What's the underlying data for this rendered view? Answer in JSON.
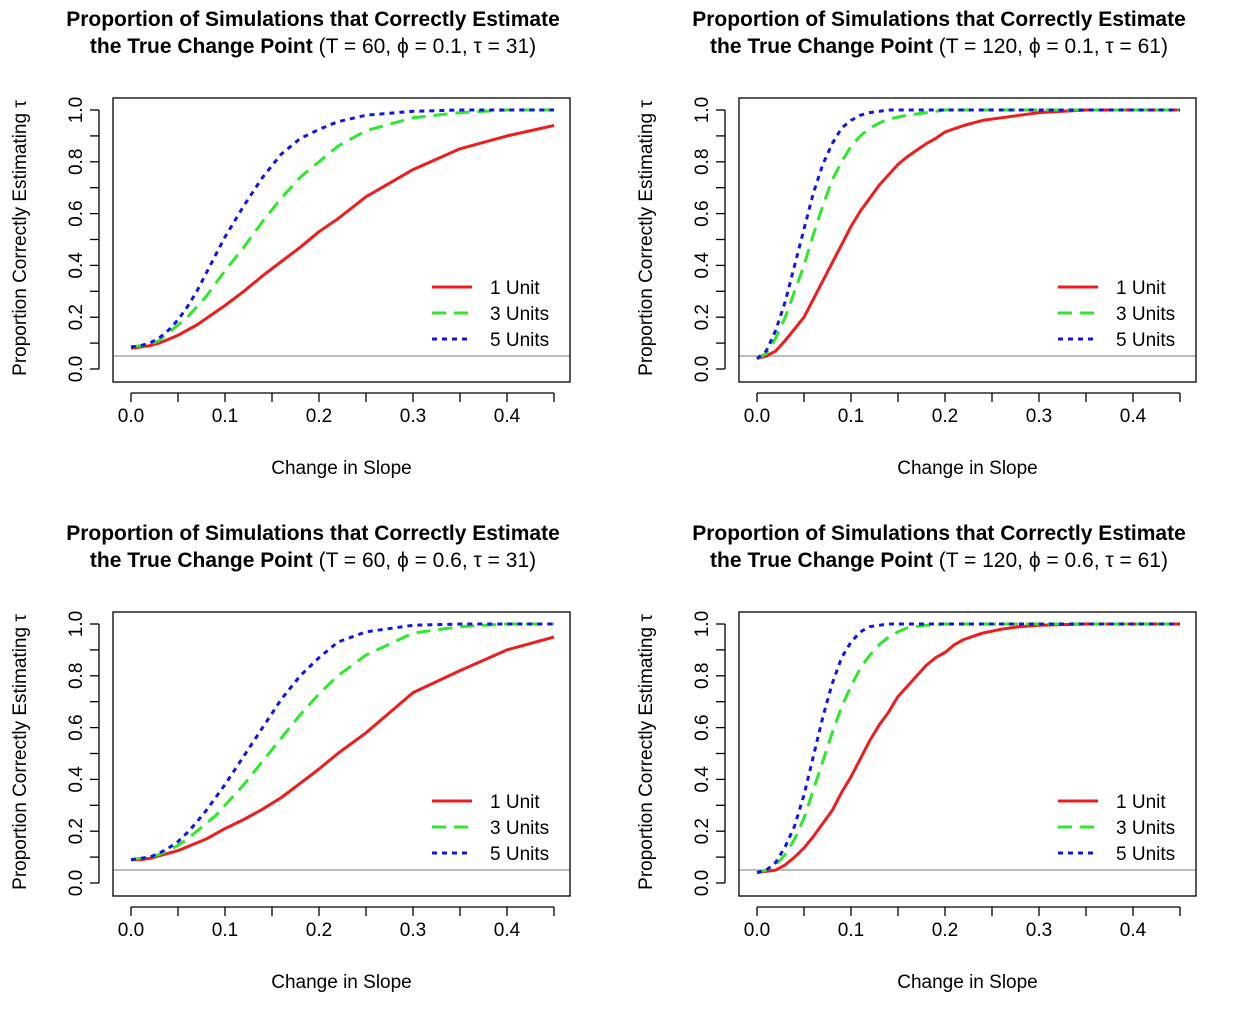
{
  "figure": {
    "title_line1": "Proportion of Simulations that Correctly Estimate",
    "title_line2_bold": "the True Change Point",
    "xlabel": "Change in Slope",
    "ylabel": "Proportion Correctly Estimating τ",
    "legend": [
      "1 Unit",
      "3 Units",
      "5 Units"
    ]
  },
  "colors": {
    "series1": "#ee1c1c",
    "series2": "#2ee82e",
    "series3": "#1414e6",
    "reference_line": "#a6a6a6"
  },
  "panels": [
    {
      "params": "(T = 60, ϕ = 0.1, τ = 31)"
    },
    {
      "params": "(T = 120, ϕ = 0.1, τ = 61)"
    },
    {
      "params": "(T = 60, ϕ = 0.6, τ = 31)"
    },
    {
      "params": "(T = 120, ϕ = 0.6, τ = 61)"
    }
  ],
  "chart_data": [
    {
      "type": "line",
      "title": "Proportion of Simulations that Correctly Estimate the True Change Point (T = 60, ϕ = 0.1, τ = 31)",
      "xlabel": "Change in Slope",
      "ylabel": "Proportion Correctly Estimating τ",
      "xlim": [
        0,
        0.45
      ],
      "ylim": [
        0,
        1
      ],
      "xticks": [
        "0.0",
        "0.1",
        "0.2",
        "0.3",
        "0.4"
      ],
      "yticks": [
        "0.0",
        "0.2",
        "0.4",
        "0.6",
        "0.8",
        "1.0"
      ],
      "reference_line": 0.05,
      "legend_position": "bottom-right",
      "series": [
        {
          "name": "1 Unit",
          "style": "solid",
          "x": [
            0,
            0.01,
            0.02,
            0.03,
            0.04,
            0.05,
            0.06,
            0.07,
            0.08,
            0.09,
            0.1,
            0.12,
            0.14,
            0.16,
            0.18,
            0.2,
            0.22,
            0.25,
            0.3,
            0.35,
            0.4,
            0.45
          ],
          "y": [
            0.08,
            0.085,
            0.09,
            0.1,
            0.115,
            0.13,
            0.15,
            0.17,
            0.195,
            0.22,
            0.245,
            0.3,
            0.36,
            0.415,
            0.47,
            0.53,
            0.58,
            0.665,
            0.77,
            0.85,
            0.9,
            0.94
          ]
        },
        {
          "name": "3 Units",
          "style": "dashed",
          "x": [
            0,
            0.01,
            0.02,
            0.03,
            0.04,
            0.05,
            0.06,
            0.07,
            0.08,
            0.09,
            0.1,
            0.12,
            0.14,
            0.16,
            0.18,
            0.2,
            0.22,
            0.25,
            0.3,
            0.35,
            0.4,
            0.45
          ],
          "y": [
            0.085,
            0.09,
            0.095,
            0.11,
            0.14,
            0.17,
            0.2,
            0.24,
            0.28,
            0.33,
            0.38,
            0.47,
            0.57,
            0.66,
            0.74,
            0.8,
            0.86,
            0.92,
            0.97,
            0.99,
            1.0,
            1.0
          ]
        },
        {
          "name": "5 Units",
          "style": "dotted",
          "x": [
            0,
            0.01,
            0.02,
            0.03,
            0.04,
            0.05,
            0.06,
            0.07,
            0.08,
            0.09,
            0.1,
            0.12,
            0.14,
            0.16,
            0.18,
            0.2,
            0.22,
            0.25,
            0.3,
            0.35,
            0.4,
            0.45
          ],
          "y": [
            0.085,
            0.09,
            0.1,
            0.12,
            0.15,
            0.19,
            0.24,
            0.3,
            0.37,
            0.44,
            0.51,
            0.63,
            0.74,
            0.83,
            0.89,
            0.925,
            0.955,
            0.98,
            0.995,
            1.0,
            1.0,
            1.0
          ]
        }
      ]
    },
    {
      "type": "line",
      "title": "Proportion of Simulations that Correctly Estimate the True Change Point (T = 120, ϕ = 0.1, τ = 61)",
      "xlabel": "Change in Slope",
      "ylabel": "Proportion Correctly Estimating τ",
      "xlim": [
        0,
        0.45
      ],
      "ylim": [
        0,
        1
      ],
      "xticks": [
        "0.0",
        "0.1",
        "0.2",
        "0.3",
        "0.4"
      ],
      "yticks": [
        "0.0",
        "0.2",
        "0.4",
        "0.6",
        "0.8",
        "1.0"
      ],
      "reference_line": 0.05,
      "legend_position": "bottom-right",
      "series": [
        {
          "name": "1 Unit",
          "style": "solid",
          "x": [
            0,
            0.01,
            0.02,
            0.03,
            0.04,
            0.05,
            0.06,
            0.07,
            0.08,
            0.09,
            0.1,
            0.11,
            0.12,
            0.13,
            0.14,
            0.15,
            0.16,
            0.17,
            0.18,
            0.19,
            0.2,
            0.22,
            0.24,
            0.26,
            0.28,
            0.3,
            0.35,
            0.4,
            0.45
          ],
          "y": [
            0.04,
            0.05,
            0.07,
            0.11,
            0.155,
            0.2,
            0.27,
            0.34,
            0.41,
            0.48,
            0.55,
            0.61,
            0.66,
            0.71,
            0.75,
            0.79,
            0.82,
            0.845,
            0.87,
            0.89,
            0.915,
            0.94,
            0.96,
            0.97,
            0.98,
            0.99,
            1.0,
            1.0,
            1.0
          ]
        },
        {
          "name": "3 Units",
          "style": "dashed",
          "x": [
            0,
            0.01,
            0.02,
            0.03,
            0.04,
            0.05,
            0.06,
            0.07,
            0.08,
            0.09,
            0.1,
            0.11,
            0.12,
            0.13,
            0.14,
            0.16,
            0.18,
            0.2,
            0.25,
            0.3,
            0.35,
            0.4,
            0.45
          ],
          "y": [
            0.04,
            0.06,
            0.12,
            0.2,
            0.3,
            0.4,
            0.52,
            0.63,
            0.73,
            0.8,
            0.86,
            0.9,
            0.93,
            0.95,
            0.965,
            0.98,
            0.99,
            1.0,
            1.0,
            1.0,
            1.0,
            1.0,
            1.0
          ]
        },
        {
          "name": "5 Units",
          "style": "dotted",
          "x": [
            0,
            0.01,
            0.02,
            0.03,
            0.04,
            0.05,
            0.06,
            0.07,
            0.08,
            0.09,
            0.1,
            0.11,
            0.12,
            0.14,
            0.16,
            0.2,
            0.25,
            0.3,
            0.35,
            0.4,
            0.45
          ],
          "y": [
            0.04,
            0.07,
            0.15,
            0.26,
            0.4,
            0.54,
            0.68,
            0.79,
            0.87,
            0.93,
            0.96,
            0.98,
            0.99,
            1.0,
            1.0,
            1.0,
            1.0,
            1.0,
            1.0,
            1.0,
            1.0
          ]
        }
      ]
    },
    {
      "type": "line",
      "title": "Proportion of Simulations that Correctly Estimate the True Change Point (T = 60, ϕ = 0.6, τ = 31)",
      "xlabel": "Change in Slope",
      "ylabel": "Proportion Correctly Estimating τ",
      "xlim": [
        0,
        0.45
      ],
      "ylim": [
        0,
        1
      ],
      "xticks": [
        "0.0",
        "0.1",
        "0.2",
        "0.3",
        "0.4"
      ],
      "yticks": [
        "0.0",
        "0.2",
        "0.4",
        "0.6",
        "0.8",
        "1.0"
      ],
      "reference_line": 0.05,
      "legend_position": "bottom-right",
      "series": [
        {
          "name": "1 Unit",
          "style": "solid",
          "x": [
            0,
            0.01,
            0.02,
            0.03,
            0.04,
            0.05,
            0.06,
            0.07,
            0.08,
            0.09,
            0.1,
            0.12,
            0.14,
            0.16,
            0.18,
            0.2,
            0.22,
            0.25,
            0.3,
            0.35,
            0.4,
            0.45
          ],
          "y": [
            0.09,
            0.09,
            0.095,
            0.105,
            0.115,
            0.125,
            0.14,
            0.155,
            0.17,
            0.19,
            0.21,
            0.245,
            0.285,
            0.33,
            0.385,
            0.44,
            0.5,
            0.58,
            0.735,
            0.82,
            0.9,
            0.95
          ]
        },
        {
          "name": "3 Units",
          "style": "dashed",
          "x": [
            0,
            0.01,
            0.02,
            0.03,
            0.04,
            0.05,
            0.06,
            0.07,
            0.08,
            0.09,
            0.1,
            0.12,
            0.14,
            0.16,
            0.18,
            0.2,
            0.22,
            0.25,
            0.3,
            0.35,
            0.4,
            0.45
          ],
          "y": [
            0.09,
            0.095,
            0.1,
            0.11,
            0.125,
            0.145,
            0.17,
            0.2,
            0.23,
            0.26,
            0.3,
            0.38,
            0.47,
            0.56,
            0.65,
            0.73,
            0.8,
            0.88,
            0.965,
            0.99,
            1.0,
            1.0
          ]
        },
        {
          "name": "5 Units",
          "style": "dotted",
          "x": [
            0,
            0.01,
            0.02,
            0.03,
            0.04,
            0.05,
            0.06,
            0.07,
            0.08,
            0.09,
            0.1,
            0.12,
            0.14,
            0.16,
            0.18,
            0.2,
            0.22,
            0.25,
            0.3,
            0.35,
            0.4,
            0.45
          ],
          "y": [
            0.09,
            0.095,
            0.1,
            0.115,
            0.135,
            0.16,
            0.195,
            0.235,
            0.28,
            0.33,
            0.38,
            0.49,
            0.6,
            0.71,
            0.8,
            0.87,
            0.93,
            0.97,
            0.995,
            1.0,
            1.0,
            1.0
          ]
        }
      ]
    },
    {
      "type": "line",
      "title": "Proportion of Simulations that Correctly Estimate the True Change Point (T = 120, ϕ = 0.6, τ = 61)",
      "xlabel": "Change in Slope",
      "ylabel": "Proportion Correctly Estimating τ",
      "xlim": [
        0,
        0.45
      ],
      "ylim": [
        0,
        1
      ],
      "xticks": [
        "0.0",
        "0.1",
        "0.2",
        "0.3",
        "0.4"
      ],
      "yticks": [
        "0.0",
        "0.2",
        "0.4",
        "0.6",
        "0.8",
        "1.0"
      ],
      "reference_line": 0.05,
      "legend_position": "bottom-right",
      "series": [
        {
          "name": "1 Unit",
          "style": "solid",
          "x": [
            0,
            0.01,
            0.02,
            0.03,
            0.04,
            0.05,
            0.06,
            0.07,
            0.08,
            0.09,
            0.1,
            0.11,
            0.12,
            0.13,
            0.14,
            0.15,
            0.16,
            0.17,
            0.18,
            0.19,
            0.2,
            0.21,
            0.22,
            0.24,
            0.26,
            0.28,
            0.3,
            0.35,
            0.4,
            0.45
          ],
          "y": [
            0.04,
            0.045,
            0.05,
            0.07,
            0.1,
            0.135,
            0.18,
            0.23,
            0.28,
            0.35,
            0.41,
            0.48,
            0.55,
            0.61,
            0.66,
            0.72,
            0.76,
            0.8,
            0.84,
            0.87,
            0.89,
            0.92,
            0.94,
            0.965,
            0.98,
            0.99,
            0.995,
            1.0,
            1.0,
            1.0
          ]
        },
        {
          "name": "3 Units",
          "style": "dashed",
          "x": [
            0,
            0.01,
            0.02,
            0.03,
            0.04,
            0.05,
            0.06,
            0.07,
            0.08,
            0.09,
            0.1,
            0.11,
            0.12,
            0.13,
            0.14,
            0.15,
            0.16,
            0.18,
            0.2,
            0.25,
            0.3,
            0.35,
            0.4,
            0.45
          ],
          "y": [
            0.04,
            0.05,
            0.07,
            0.11,
            0.17,
            0.25,
            0.36,
            0.47,
            0.58,
            0.68,
            0.76,
            0.83,
            0.88,
            0.92,
            0.95,
            0.97,
            0.985,
            0.995,
            1.0,
            1.0,
            1.0,
            1.0,
            1.0,
            1.0
          ]
        },
        {
          "name": "5 Units",
          "style": "dotted",
          "x": [
            0,
            0.01,
            0.02,
            0.03,
            0.04,
            0.05,
            0.06,
            0.07,
            0.08,
            0.09,
            0.1,
            0.11,
            0.12,
            0.14,
            0.16,
            0.2,
            0.25,
            0.3,
            0.35,
            0.4,
            0.45
          ],
          "y": [
            0.04,
            0.05,
            0.08,
            0.14,
            0.22,
            0.34,
            0.49,
            0.64,
            0.77,
            0.87,
            0.93,
            0.97,
            0.99,
            1.0,
            1.0,
            1.0,
            1.0,
            1.0,
            1.0,
            1.0,
            1.0
          ]
        }
      ]
    }
  ]
}
